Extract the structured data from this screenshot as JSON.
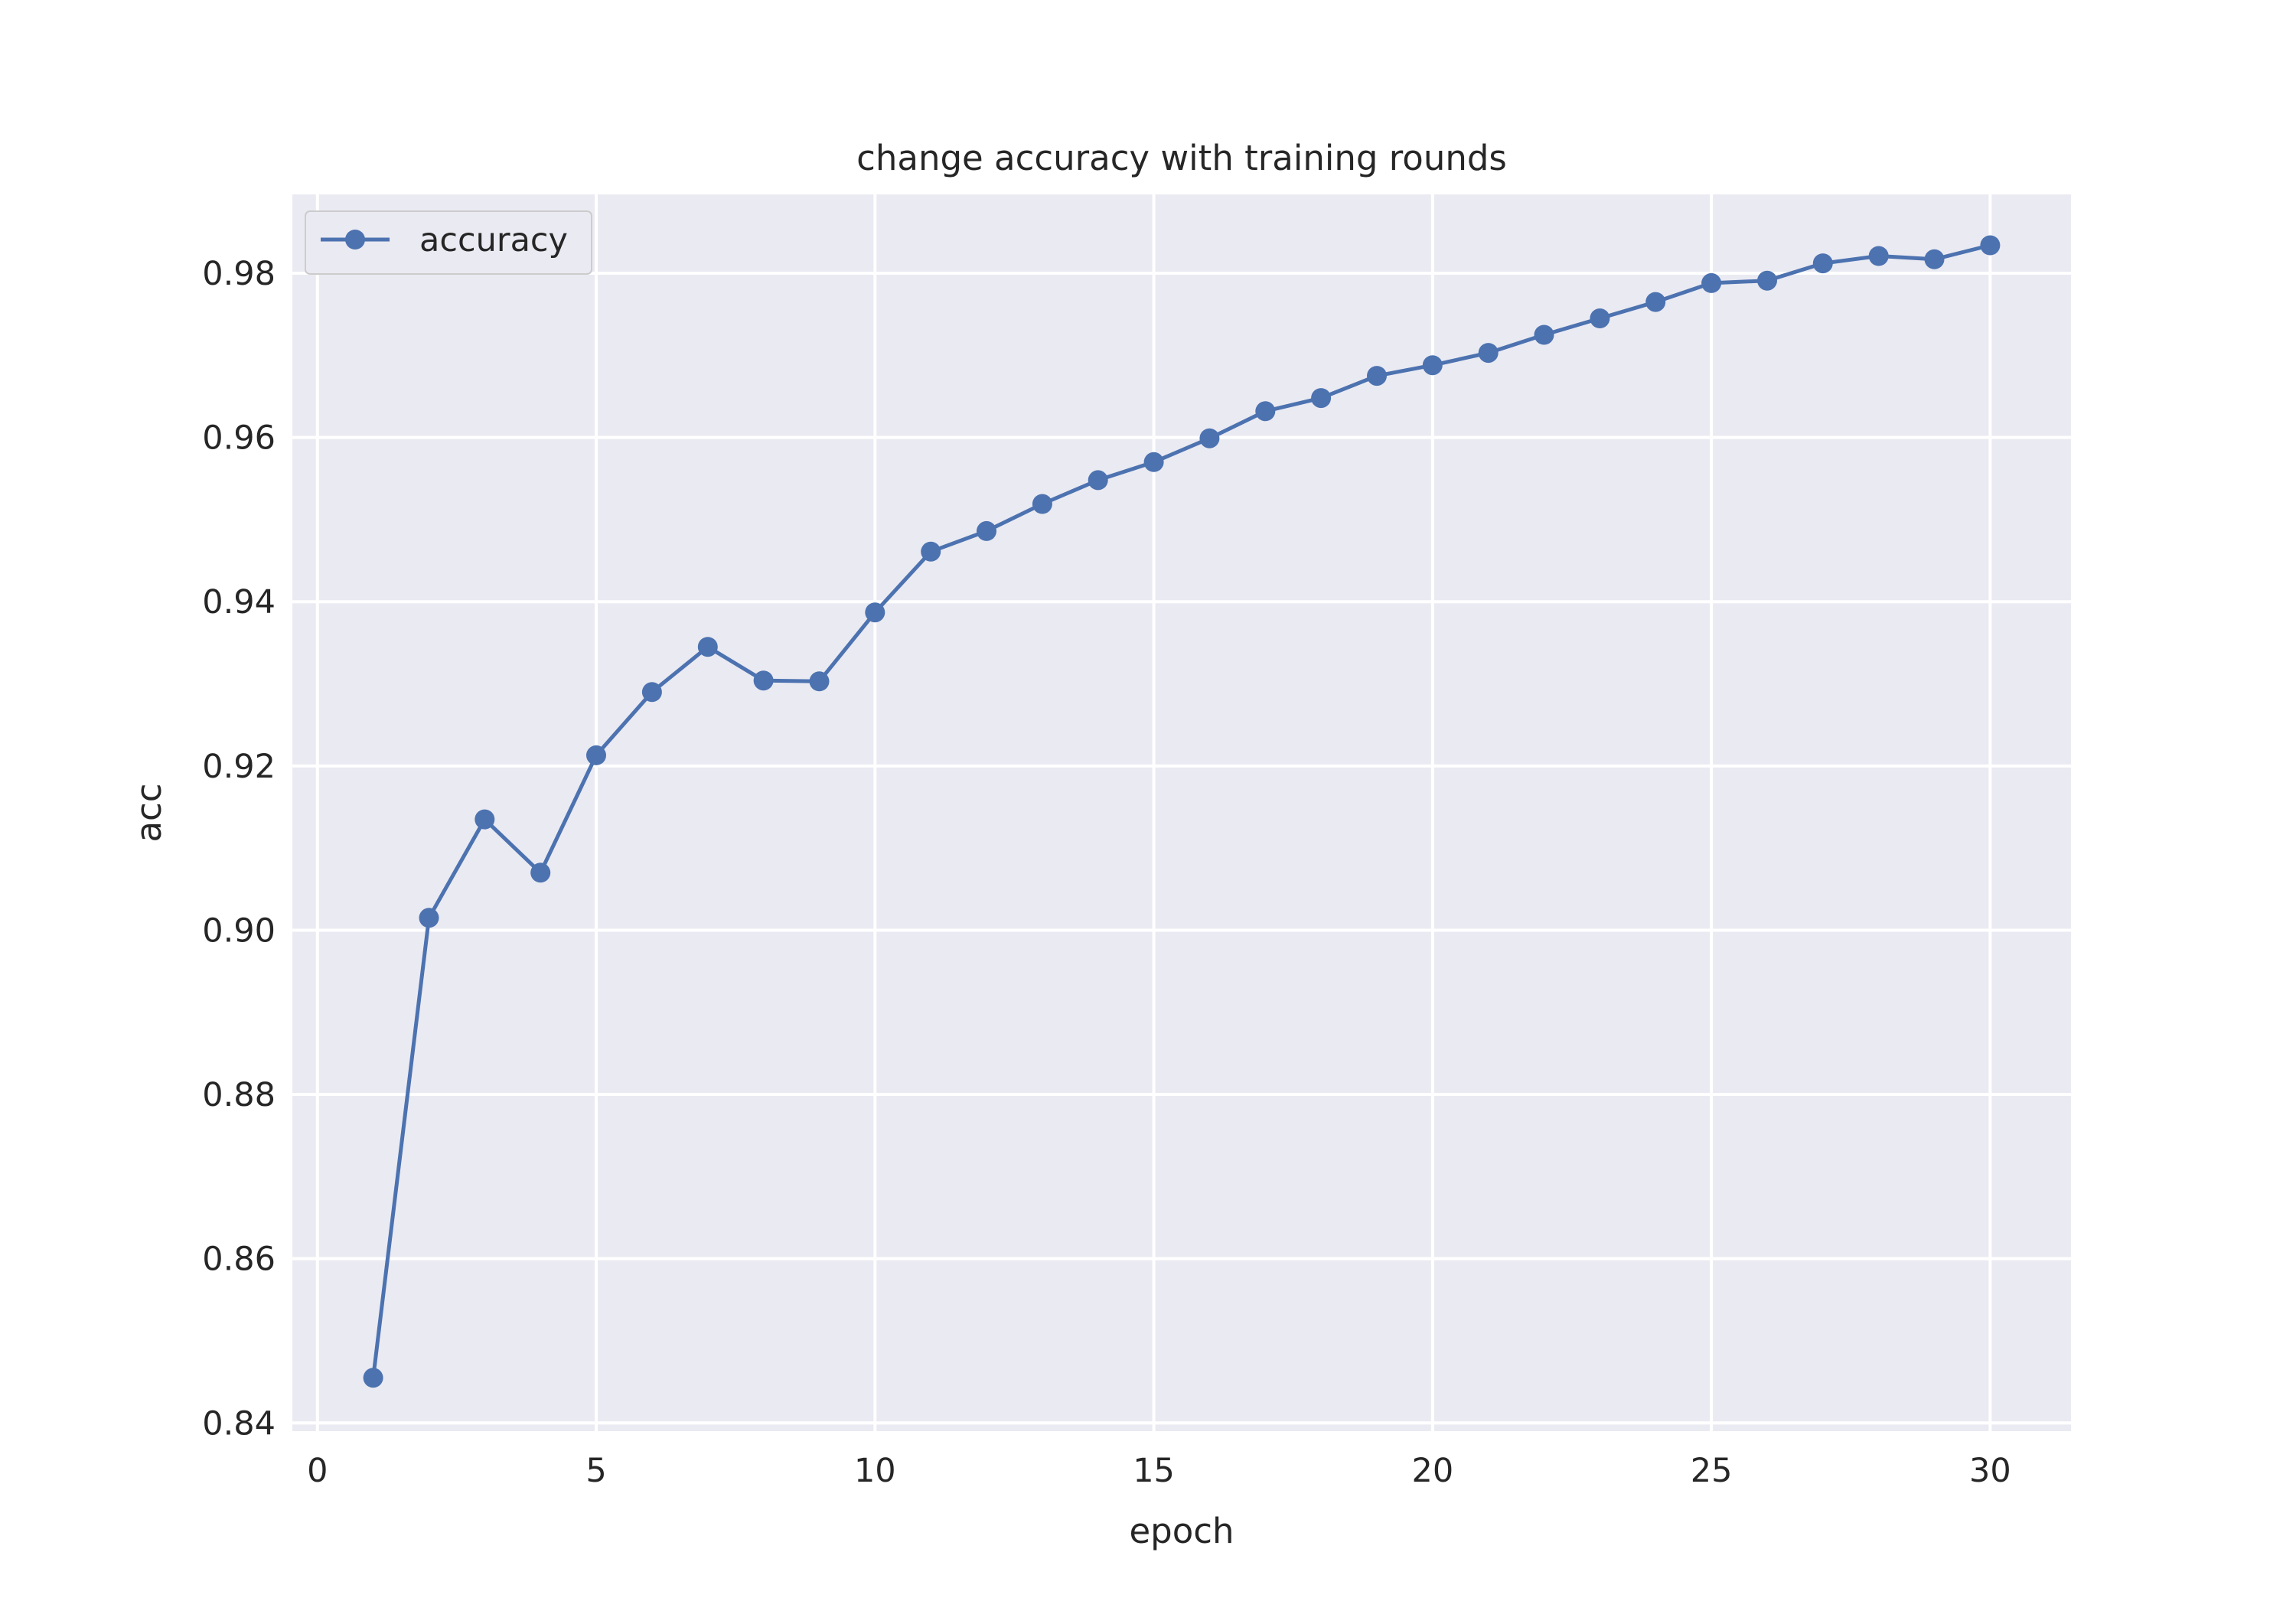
{
  "chart_data": {
    "type": "line",
    "title": "change accuracy with training rounds",
    "xlabel": "epoch",
    "ylabel": "acc",
    "xlim": [
      -0.45,
      31.45
    ],
    "ylim": [
      0.839,
      0.9896
    ],
    "xticks": [
      0,
      5,
      10,
      15,
      20,
      25,
      30
    ],
    "yticks": [
      0.84,
      0.86,
      0.88,
      0.9,
      0.92,
      0.94,
      0.96,
      0.98
    ],
    "ytick_labels": [
      "0.84",
      "0.86",
      "0.88",
      "0.90",
      "0.92",
      "0.94",
      "0.96",
      "0.98"
    ],
    "grid": true,
    "legend_position": "upper-left",
    "series": [
      {
        "name": "accuracy",
        "color": "#4c72b0",
        "marker": "circle",
        "x": [
          1,
          2,
          3,
          4,
          5,
          6,
          7,
          8,
          9,
          10,
          11,
          12,
          13,
          14,
          15,
          16,
          17,
          18,
          19,
          20,
          21,
          22,
          23,
          24,
          25,
          26,
          27,
          28,
          29,
          30
        ],
        "y": [
          0.8455,
          0.9015,
          0.9135,
          0.907,
          0.9213,
          0.929,
          0.9345,
          0.9304,
          0.9303,
          0.9387,
          0.9461,
          0.9486,
          0.9519,
          0.9548,
          0.957,
          0.9599,
          0.9632,
          0.9648,
          0.9675,
          0.9688,
          0.9703,
          0.9725,
          0.9745,
          0.9765,
          0.9788,
          0.9791,
          0.9812,
          0.9821,
          0.9817,
          0.9834
        ]
      }
    ]
  }
}
